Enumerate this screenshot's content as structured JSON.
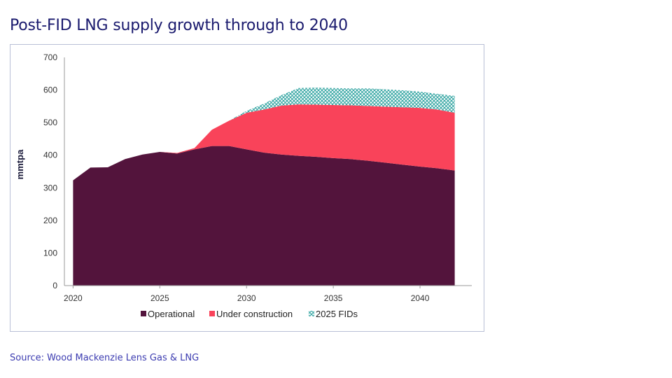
{
  "page": {
    "title": "Post-FID LNG supply growth through to 2040",
    "source": "Source: Wood Mackenzie Lens Gas & LNG"
  },
  "chart_data": {
    "type": "area",
    "stacked": true,
    "title": "",
    "xlabel": "",
    "ylabel": "mmtpa",
    "ylim": [
      0,
      700
    ],
    "yticks": [
      0,
      100,
      200,
      300,
      400,
      500,
      600,
      700
    ],
    "xticks": [
      2020,
      2025,
      2030,
      2035,
      2040
    ],
    "xlim": [
      2019.5,
      2042.5
    ],
    "grid": false,
    "legend_position": "bottom",
    "x": [
      2020,
      2021,
      2022,
      2023,
      2024,
      2025,
      2026,
      2027,
      2028,
      2029,
      2030,
      2031,
      2032,
      2033,
      2034,
      2035,
      2036,
      2037,
      2038,
      2039,
      2040,
      2041,
      2042
    ],
    "series": [
      {
        "name": "Operational",
        "color": "#53143c",
        "values": [
          323,
          362,
          363,
          388,
          402,
          410,
          405,
          418,
          428,
          428,
          418,
          408,
          402,
          398,
          395,
          391,
          388,
          383,
          377,
          371,
          365,
          360,
          353
        ]
      },
      {
        "name": "Under construction",
        "color": "#f9435a",
        "values": [
          0,
          0,
          0,
          0,
          0,
          0,
          2,
          4,
          50,
          78,
          112,
          132,
          150,
          158,
          160,
          163,
          165,
          168,
          172,
          176,
          180,
          180,
          177
        ]
      },
      {
        "name": "2025 FIDs",
        "color": "#2fa3a0",
        "values": [
          0,
          0,
          0,
          0,
          0,
          0,
          0,
          0,
          0,
          0,
          6,
          18,
          32,
          50,
          52,
          52,
          52,
          54,
          53,
          52,
          50,
          48,
          52
        ]
      }
    ]
  }
}
